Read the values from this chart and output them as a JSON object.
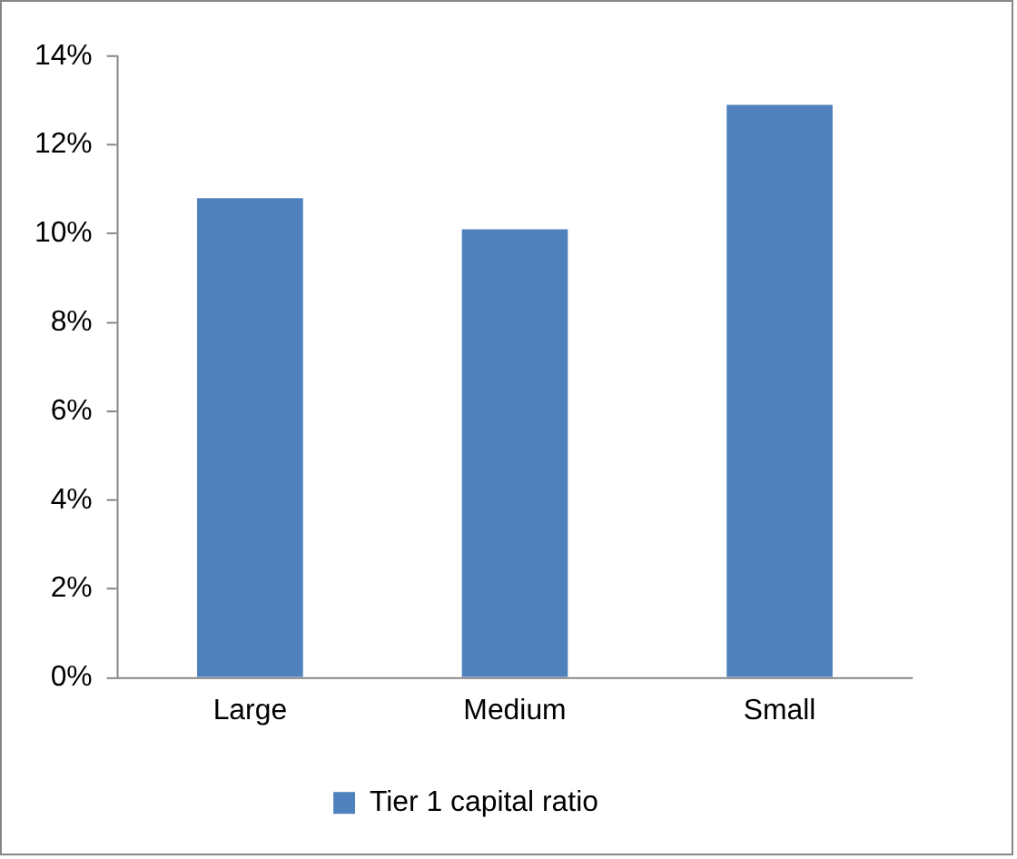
{
  "chart_data": {
    "type": "bar",
    "categories": [
      "Large",
      "Medium",
      "Small"
    ],
    "series": [
      {
        "name": "Tier 1 capital ratio",
        "color": "#4f81bd",
        "values": [
          10.8,
          10.1,
          12.9
        ]
      }
    ],
    "ylim": [
      0,
      14
    ],
    "yticks": [
      {
        "value": 0,
        "label": "0%"
      },
      {
        "value": 2,
        "label": "2%"
      },
      {
        "value": 4,
        "label": "4%"
      },
      {
        "value": 6,
        "label": "6%"
      },
      {
        "value": 8,
        "label": "8%"
      },
      {
        "value": 10,
        "label": "10%"
      },
      {
        "value": 12,
        "label": "12%"
      },
      {
        "value": 14,
        "label": "14%"
      }
    ],
    "grid": false,
    "legend": "bottom"
  }
}
